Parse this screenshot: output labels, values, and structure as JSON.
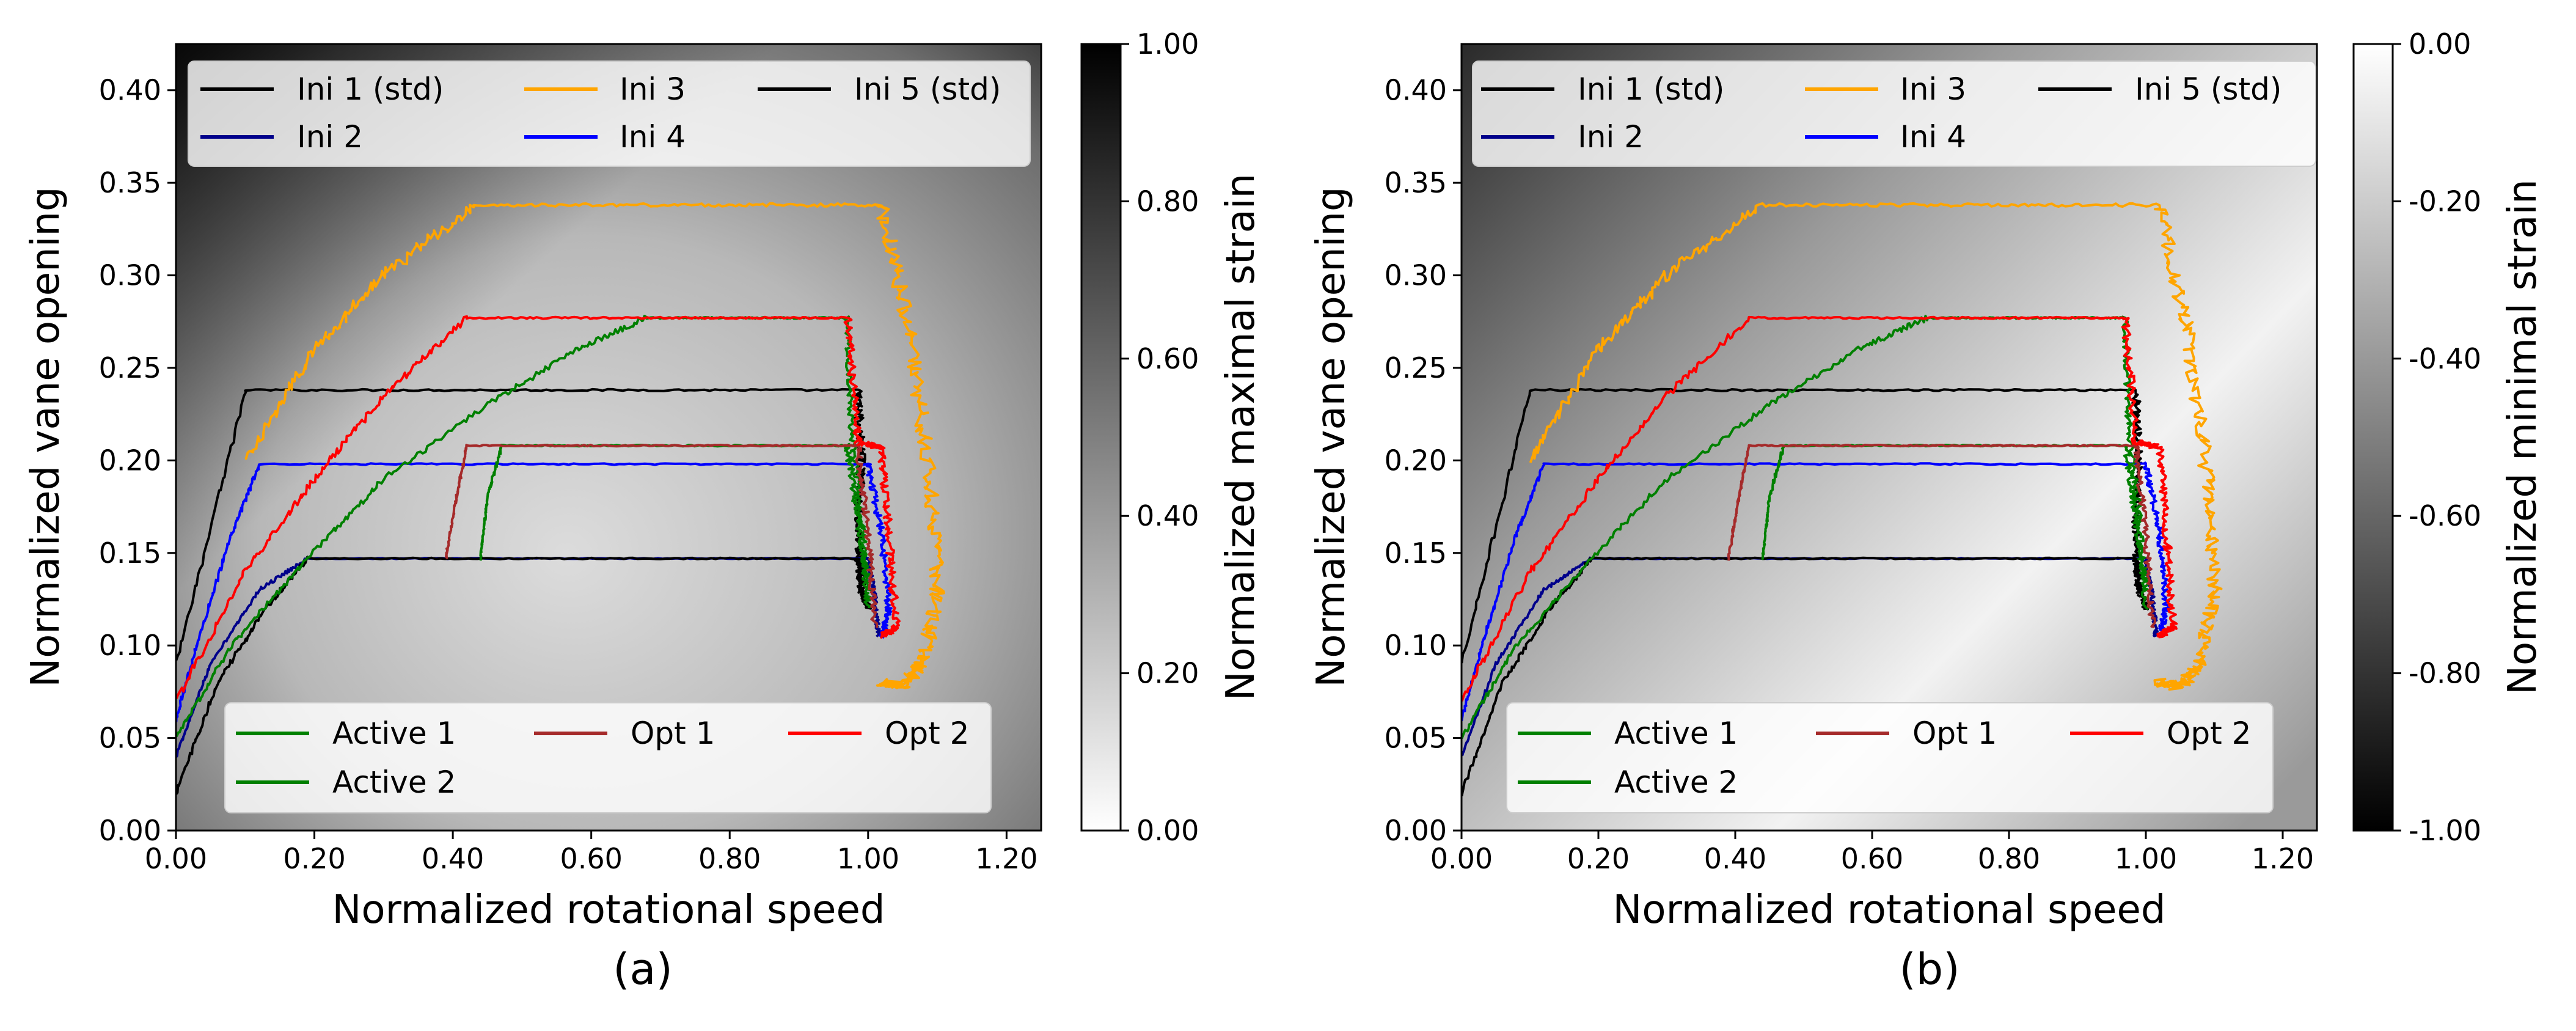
{
  "chart_data": [
    {
      "type": "line",
      "caption": "(a)",
      "xlabel": "Normalized rotational speed",
      "ylabel": "Normalized vane opening",
      "xlim": [
        0,
        1.25
      ],
      "ylim": [
        0,
        0.425
      ],
      "xticks": [
        "0.00",
        "0.20",
        "0.40",
        "0.60",
        "0.80",
        "1.00",
        "1.20"
      ],
      "yticks": [
        "0.00",
        "0.05",
        "0.10",
        "0.15",
        "0.20",
        "0.25",
        "0.30",
        "0.35",
        "0.40"
      ],
      "colorbar": {
        "label": "Normalized maximal strain",
        "range": [
          0,
          1
        ],
        "ticks": [
          "0.00",
          "0.20",
          "0.40",
          "0.60",
          "0.80",
          "1.00"
        ],
        "low_color": "#ffffff",
        "high_color": "#000000"
      },
      "background_field": "maximal",
      "legend_top": [
        "Ini 1 (std)",
        "Ini 2",
        "Ini 3",
        "Ini 4",
        "Ini 5 (std)"
      ],
      "legend_bottom": [
        "Active 1",
        "Active 2",
        "Opt 1",
        "Opt 2"
      ]
    },
    {
      "type": "line",
      "caption": "(b)",
      "xlabel": "Normalized rotational speed",
      "ylabel": "Normalized vane opening",
      "xlim": [
        0,
        1.25
      ],
      "ylim": [
        0,
        0.425
      ],
      "xticks": [
        "0.00",
        "0.20",
        "0.40",
        "0.60",
        "0.80",
        "1.00",
        "1.20"
      ],
      "yticks": [
        "0.00",
        "0.05",
        "0.10",
        "0.15",
        "0.20",
        "0.25",
        "0.30",
        "0.35",
        "0.40"
      ],
      "colorbar": {
        "label": "Normalized minimal strain",
        "range": [
          -1,
          0
        ],
        "ticks": [
          "-1.00",
          "-0.80",
          "-0.60",
          "-0.40",
          "-0.20",
          "0.00"
        ],
        "low_color": "#000000",
        "high_color": "#ffffff"
      },
      "background_field": "minimal",
      "legend_top": [
        "Ini 1 (std)",
        "Ini 2",
        "Ini 3",
        "Ini 4",
        "Ini 5 (std)"
      ],
      "legend_bottom": [
        "Active 1",
        "Active 2",
        "Opt 1",
        "Opt 2"
      ]
    }
  ],
  "series": [
    {
      "name": "Ini 1 (std)",
      "color": "#000000",
      "ramp": [
        [
          0,
          0.09
        ],
        [
          0.1,
          0.237
        ]
      ],
      "x_plateau_end": 0.985,
      "y_plateau": 0.238,
      "descent": [
        [
          0.985,
          0.238
        ],
        [
          0.99,
          0.2
        ],
        [
          0.985,
          0.16
        ],
        [
          0.99,
          0.13
        ]
      ],
      "noise": 0.004
    },
    {
      "name": "Ini 2",
      "color": "#00008b",
      "ramp": [
        [
          0,
          0.04
        ],
        [
          0.05,
          0.09
        ],
        [
          0.12,
          0.13
        ],
        [
          0.19,
          0.147
        ]
      ],
      "x_plateau_end": 1.0,
      "y_plateau": 0.147,
      "descent": [
        [
          1.0,
          0.147
        ],
        [
          1.01,
          0.125
        ],
        [
          1.015,
          0.105
        ]
      ],
      "noise": 0.002
    },
    {
      "name": "Ini 3",
      "color": "#ffa500",
      "ramp": [
        [
          0.1,
          0.2
        ],
        [
          0.2,
          0.26
        ],
        [
          0.3,
          0.3
        ],
        [
          0.43,
          0.337
        ]
      ],
      "x_plateau_end": 1.02,
      "y_plateau": 0.338,
      "descent": [
        [
          1.02,
          0.338
        ],
        [
          1.06,
          0.27
        ],
        [
          1.09,
          0.19
        ],
        [
          1.1,
          0.13
        ],
        [
          1.08,
          0.09
        ],
        [
          1.05,
          0.078
        ],
        [
          1.02,
          0.08
        ]
      ],
      "noise": 0.007
    },
    {
      "name": "Ini 4",
      "color": "#0000ff",
      "ramp": [
        [
          0,
          0.06
        ],
        [
          0.03,
          0.1
        ],
        [
          0.08,
          0.16
        ],
        [
          0.12,
          0.197
        ]
      ],
      "x_plateau_end": 1.0,
      "y_plateau": 0.198,
      "descent": [
        [
          1.0,
          0.198
        ],
        [
          1.02,
          0.16
        ],
        [
          1.03,
          0.12
        ],
        [
          1.02,
          0.105
        ]
      ],
      "noise": 0.003
    },
    {
      "name": "Ini 5 (std)",
      "color": "#000000",
      "ramp": [
        [
          0,
          0.02
        ],
        [
          0.06,
          0.08
        ],
        [
          0.13,
          0.12
        ],
        [
          0.19,
          0.147
        ]
      ],
      "x_plateau_end": 0.985,
      "y_plateau": 0.147,
      "descent": [
        [
          0.985,
          0.147
        ],
        [
          0.99,
          0.13
        ],
        [
          1.0,
          0.12
        ]
      ],
      "noise": 0.003
    },
    {
      "name": "Active 1",
      "color": "#008000",
      "ramp": [
        [
          0,
          0.05
        ],
        [
          0.08,
          0.1
        ],
        [
          0.19,
          0.147
        ],
        [
          0.3,
          0.19
        ],
        [
          0.45,
          0.23
        ],
        [
          0.58,
          0.26
        ],
        [
          0.68,
          0.277
        ]
      ],
      "x_plateau_end": 0.97,
      "y_plateau": 0.277,
      "descent": [
        [
          0.97,
          0.277
        ],
        [
          0.975,
          0.22
        ],
        [
          0.99,
          0.17
        ],
        [
          1.0,
          0.12
        ]
      ],
      "noise": 0.003
    },
    {
      "name": "Active 2",
      "color": "#008000",
      "ramp": [
        [
          0.44,
          0.147
        ],
        [
          0.45,
          0.18
        ],
        [
          0.47,
          0.207
        ]
      ],
      "x_plateau_end": 0.97,
      "y_plateau": 0.208,
      "descent": [
        [
          0.97,
          0.208
        ],
        [
          0.985,
          0.17
        ],
        [
          1.0,
          0.13
        ]
      ],
      "noise": 0.003
    },
    {
      "name": "Opt 1",
      "color": "#a52a2a",
      "ramp": [
        [
          0.39,
          0.147
        ],
        [
          0.405,
          0.18
        ],
        [
          0.42,
          0.207
        ]
      ],
      "x_plateau_end": 0.985,
      "y_plateau": 0.208,
      "descent": [
        [
          0.985,
          0.208
        ],
        [
          1.0,
          0.16
        ],
        [
          1.01,
          0.11
        ]
      ],
      "noise": 0.003
    },
    {
      "name": "Opt 2",
      "color": "#ff0000",
      "ramp": [
        [
          0,
          0.07
        ],
        [
          0.1,
          0.14
        ],
        [
          0.2,
          0.19
        ],
        [
          0.3,
          0.235
        ],
        [
          0.42,
          0.277
        ]
      ],
      "x_plateau_end": 0.97,
      "y_plateau": 0.277,
      "descent": [
        [
          0.97,
          0.277
        ],
        [
          0.985,
          0.21
        ],
        [
          1.02,
          0.207
        ],
        [
          1.03,
          0.16
        ],
        [
          1.04,
          0.11
        ],
        [
          1.02,
          0.105
        ]
      ],
      "noise": 0.004
    }
  ]
}
